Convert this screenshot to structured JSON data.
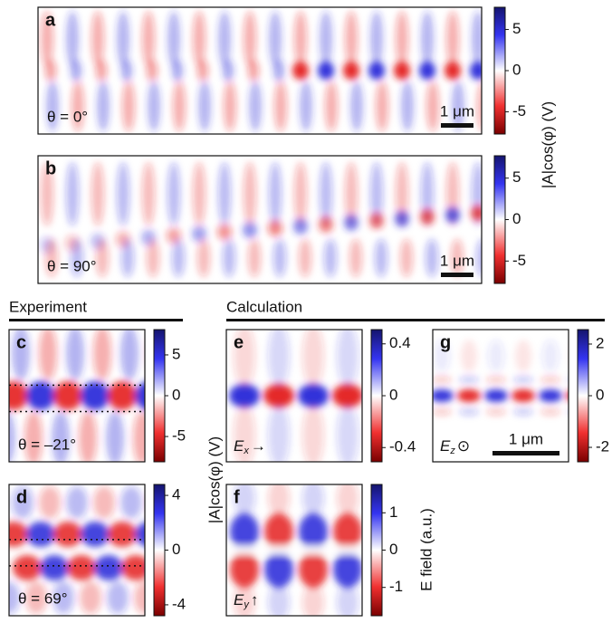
{
  "figure": {
    "sections": [
      "Experiment",
      "Calculation"
    ],
    "panels": [
      {
        "label": "a",
        "annotation": "θ = 0°",
        "scale_bar": "1 μm"
      },
      {
        "label": "b",
        "annotation": "θ = 90°",
        "scale_bar": "1 μm"
      },
      {
        "label": "c",
        "annotation": "θ = –21°"
      },
      {
        "label": "d",
        "annotation": "θ = 69°"
      },
      {
        "label": "e",
        "field": "E",
        "component": "x",
        "symbol": "→"
      },
      {
        "label": "f",
        "field": "E",
        "component": "y",
        "symbol": "↑"
      },
      {
        "label": "g",
        "field": "E",
        "component": "z",
        "symbol": "⊙",
        "scale_bar": "1 μm"
      }
    ],
    "colorbars": [
      {
        "lim": [
          -7.7,
          7.7
        ],
        "ticks": [
          5,
          0,
          -5
        ]
      },
      {
        "lim": [
          -7.7,
          7.7
        ],
        "ticks": [
          5,
          0,
          -5
        ]
      },
      {
        "lim": [
          -8.1,
          8.1
        ],
        "ticks": [
          5,
          0,
          -5
        ]
      },
      {
        "lim": [
          -4.8,
          4.8
        ],
        "ticks": [
          4,
          0,
          -4
        ]
      },
      {
        "lim": [
          -0.51,
          0.51
        ],
        "ticks": [
          0.4,
          0,
          -0.4
        ]
      },
      {
        "lim": [
          -1.76,
          1.76
        ],
        "ticks": [
          1,
          0,
          -1
        ]
      },
      {
        "lim": [
          -2.56,
          2.56
        ],
        "ticks": [
          2,
          0,
          -2
        ]
      }
    ],
    "colorbar_labels": [
      "|A|cos(φ) (V)",
      "|A|cos(φ) (V)",
      "E field (a.u.)"
    ]
  }
}
